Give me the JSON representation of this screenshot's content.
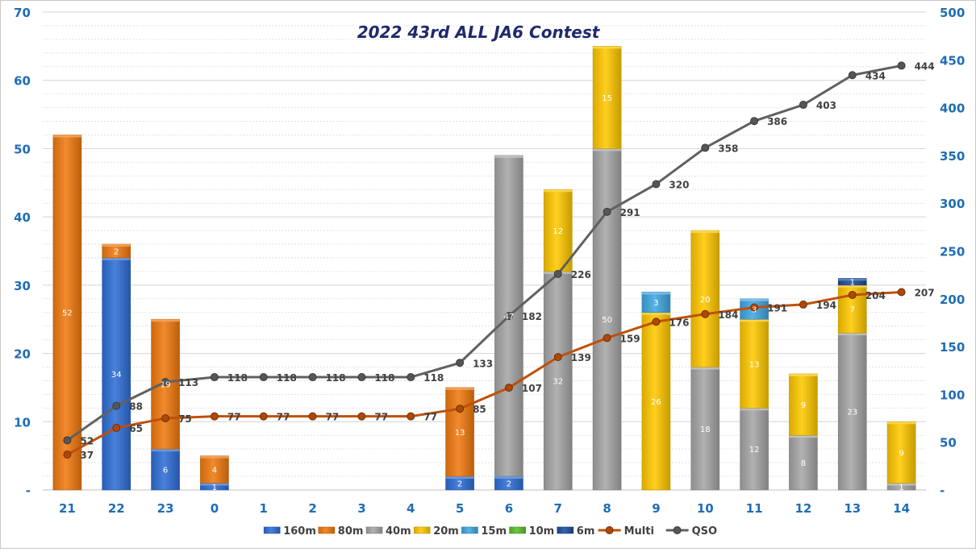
{
  "chart_data": {
    "type": "bar",
    "subtype": "stacked bar with line overlay (secondary axis)",
    "title": "2022 43rd ALL JA6 Contest",
    "categories": [
      "21",
      "22",
      "23",
      "0",
      "1",
      "2",
      "3",
      "4",
      "5",
      "6",
      "7",
      "8",
      "9",
      "10",
      "11",
      "12",
      "13",
      "14"
    ],
    "y_left": {
      "min": 0,
      "max": 70,
      "step": 10,
      "ticks": [
        "-",
        "10",
        "20",
        "30",
        "40",
        "50",
        "60",
        "70"
      ]
    },
    "y_right": {
      "min": 0,
      "max": 500,
      "step": 50,
      "ticks": [
        "-",
        "50",
        "100",
        "150",
        "200",
        "250",
        "300",
        "350",
        "400",
        "450",
        "500"
      ]
    },
    "gridlines": true,
    "legend_position": "bottom",
    "bar_series": [
      {
        "name": "160m",
        "color": "#2F6FD6",
        "values": [
          0,
          34,
          6,
          1,
          0,
          0,
          0,
          0,
          2,
          2,
          0,
          0,
          0,
          0,
          0,
          0,
          0,
          0
        ]
      },
      {
        "name": "80m",
        "color": "#F07A10",
        "values": [
          52,
          2,
          19,
          4,
          0,
          0,
          0,
          0,
          13,
          0,
          0,
          0,
          0,
          0,
          0,
          0,
          0,
          0
        ]
      },
      {
        "name": "40m",
        "color": "#A6A6A6",
        "values": [
          0,
          0,
          0,
          0,
          0,
          0,
          0,
          0,
          0,
          47,
          32,
          50,
          0,
          18,
          12,
          8,
          23,
          1
        ]
      },
      {
        "name": "20m",
        "color": "#FFC800",
        "values": [
          0,
          0,
          0,
          0,
          0,
          0,
          0,
          0,
          0,
          0,
          12,
          15,
          26,
          20,
          13,
          9,
          7,
          9
        ]
      },
      {
        "name": "15m",
        "color": "#41A7E1",
        "values": [
          0,
          0,
          0,
          0,
          0,
          0,
          0,
          0,
          0,
          0,
          0,
          0,
          3,
          0,
          3,
          0,
          0,
          0
        ]
      },
      {
        "name": "10m",
        "color": "#5BBF2A",
        "values": [
          0,
          0,
          0,
          0,
          0,
          0,
          0,
          0,
          0,
          0,
          0,
          0,
          0,
          0,
          0,
          0,
          0,
          0
        ]
      },
      {
        "name": "6m",
        "color": "#1F4E9C",
        "values": [
          0,
          0,
          0,
          0,
          0,
          0,
          0,
          0,
          0,
          0,
          0,
          0,
          0,
          0,
          0,
          0,
          1,
          0
        ]
      }
    ],
    "line_series": [
      {
        "name": "Multi",
        "color": "#C0500A",
        "axis": "right",
        "values": [
          37,
          65,
          75,
          77,
          77,
          77,
          77,
          77,
          85,
          107,
          139,
          159,
          176,
          184,
          191,
          194,
          204,
          207
        ]
      },
      {
        "name": "QSO",
        "color": "#606060",
        "axis": "right",
        "values": [
          52,
          88,
          113,
          118,
          118,
          118,
          118,
          118,
          133,
          182,
          226,
          291,
          320,
          358,
          386,
          403,
          434,
          444
        ]
      }
    ]
  }
}
